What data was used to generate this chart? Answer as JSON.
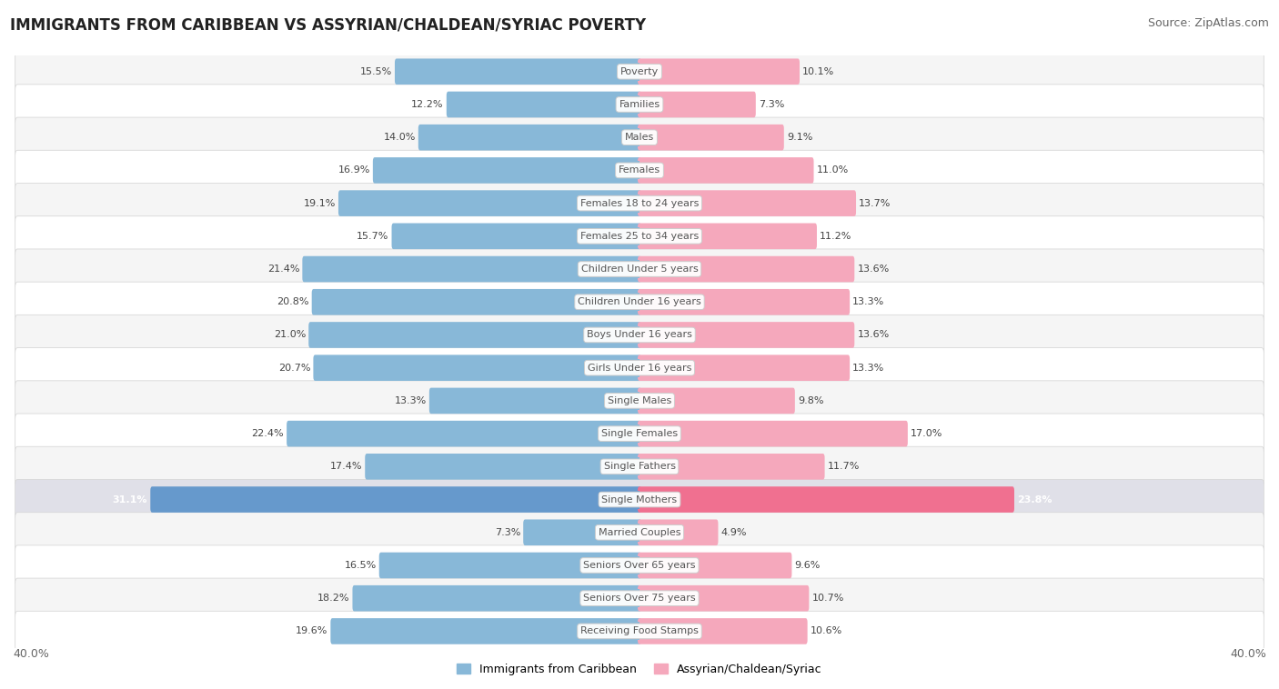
{
  "title": "IMMIGRANTS FROM CARIBBEAN VS ASSYRIAN/CHALDEAN/SYRIAC POVERTY",
  "source": "Source: ZipAtlas.com",
  "categories": [
    "Poverty",
    "Families",
    "Males",
    "Females",
    "Females 18 to 24 years",
    "Females 25 to 34 years",
    "Children Under 5 years",
    "Children Under 16 years",
    "Boys Under 16 years",
    "Girls Under 16 years",
    "Single Males",
    "Single Females",
    "Single Fathers",
    "Single Mothers",
    "Married Couples",
    "Seniors Over 65 years",
    "Seniors Over 75 years",
    "Receiving Food Stamps"
  ],
  "left_values": [
    15.5,
    12.2,
    14.0,
    16.9,
    19.1,
    15.7,
    21.4,
    20.8,
    21.0,
    20.7,
    13.3,
    22.4,
    17.4,
    31.1,
    7.3,
    16.5,
    18.2,
    19.6
  ],
  "right_values": [
    10.1,
    7.3,
    9.1,
    11.0,
    13.7,
    11.2,
    13.6,
    13.3,
    13.6,
    13.3,
    9.8,
    17.0,
    11.7,
    23.8,
    4.9,
    9.6,
    10.7,
    10.6
  ],
  "left_color": "#88b8d8",
  "right_color": "#f5a8bc",
  "left_color_highlight": "#6699cc",
  "right_color_highlight": "#f07090",
  "row_bg_even": "#f5f5f5",
  "row_bg_odd": "#ffffff",
  "row_bg_highlight": "#e0e0e8",
  "label_bg_color": "#ffffff",
  "label_text_color": "#555555",
  "value_color": "#444444",
  "axis_max": 40.0,
  "legend_left": "Immigrants from Caribbean",
  "legend_right": "Assyrian/Chaldean/Syriac",
  "highlight_row": 13,
  "title_fontsize": 12,
  "source_fontsize": 9,
  "label_fontsize": 8,
  "value_fontsize": 8,
  "legend_fontsize": 9,
  "axis_fontsize": 9
}
